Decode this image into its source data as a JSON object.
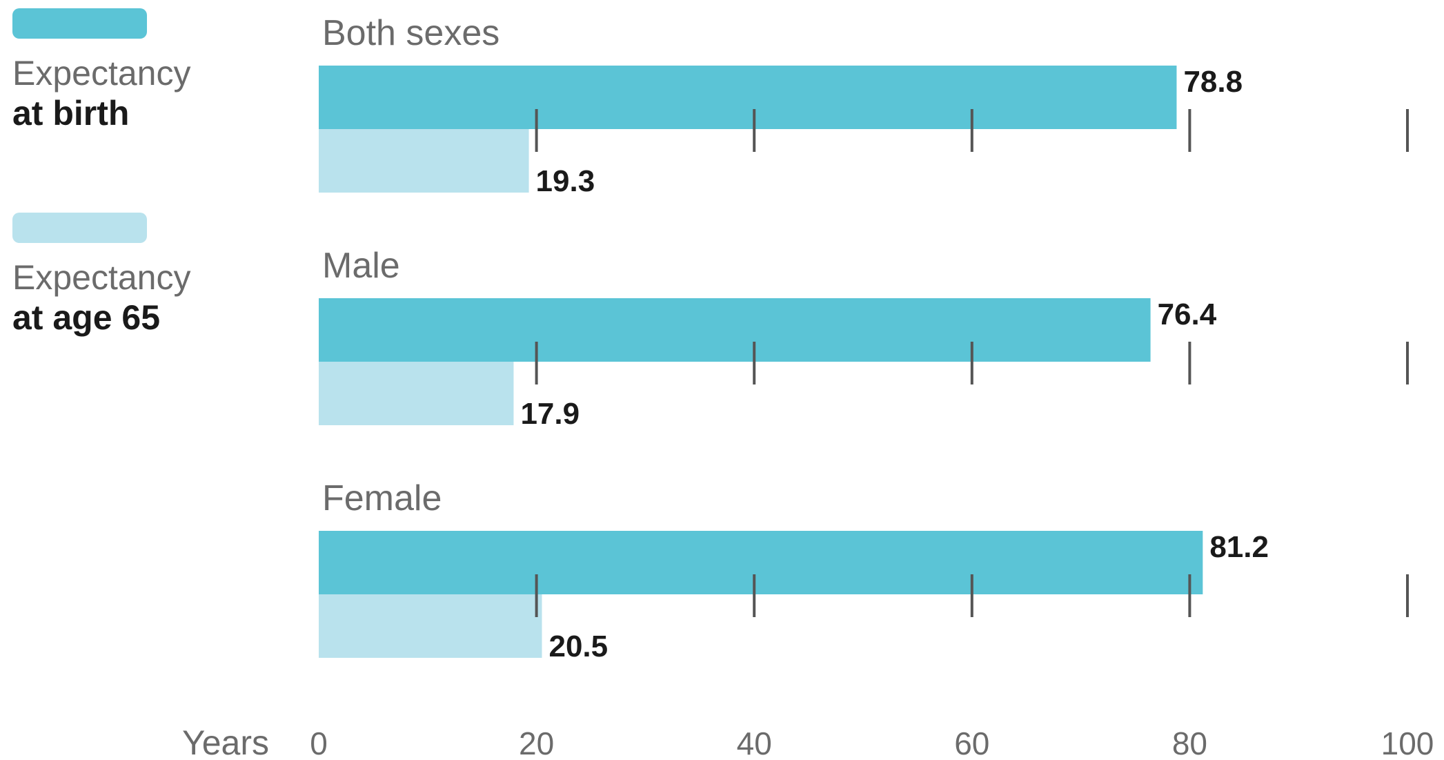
{
  "legend": [
    {
      "line1": "Expectancy",
      "line2": "at birth",
      "color": "#5bc4d6"
    },
    {
      "line1": "Expectancy",
      "line2": "at age 65",
      "color": "#b9e2ed"
    }
  ],
  "chart_data": {
    "type": "bar",
    "orientation": "horizontal",
    "categories": [
      "Both sexes",
      "Male",
      "Female"
    ],
    "series": [
      {
        "name": "Expectancy at birth",
        "values": [
          78.8,
          76.4,
          81.2
        ],
        "color": "#5bc4d6"
      },
      {
        "name": "Expectancy at age 65",
        "values": [
          19.3,
          17.9,
          20.5
        ],
        "color": "#b9e2ed"
      }
    ],
    "xlabel": "Years",
    "xlim": [
      0,
      100
    ],
    "xticks": [
      0,
      20,
      40,
      60,
      80,
      100
    ],
    "tick_color": "#555555",
    "grid": false,
    "legend_position": "left"
  }
}
